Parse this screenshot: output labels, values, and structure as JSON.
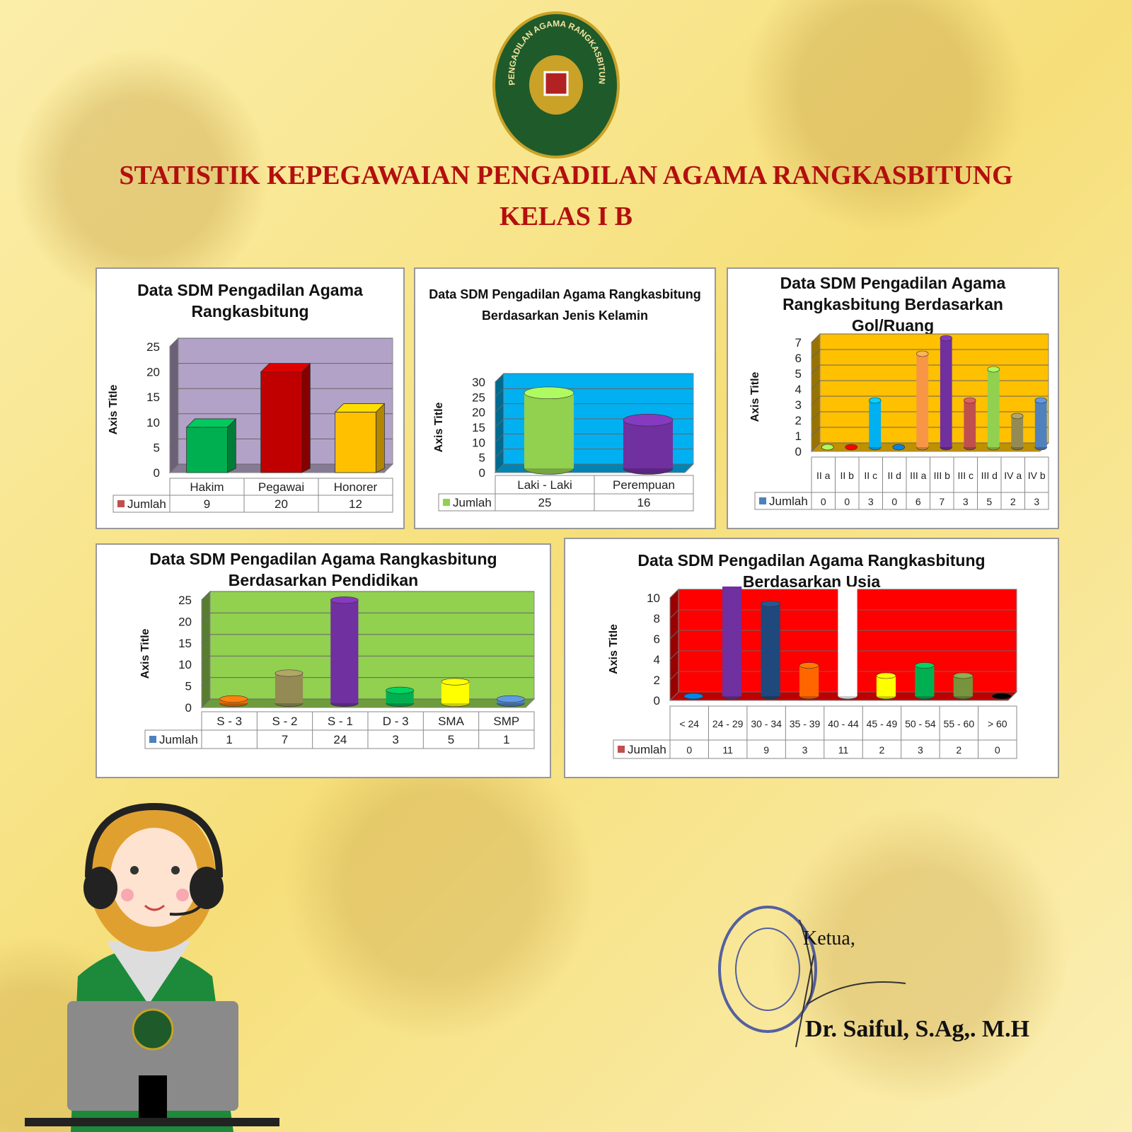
{
  "header": {
    "logo_text": "PENGADILAN AGAMA RANGKASBITUNG",
    "title": [
      "STATISTIK KEPEGAWAIAN PENGADILAN AGAMA RANGKASBITUNG",
      "KELAS I B"
    ]
  },
  "chart_data": [
    {
      "type": "bar",
      "bar_shape": "box",
      "title": [
        "Data SDM Pengadilan Agama",
        "Rangkasbitung"
      ],
      "y_axis_label": "Axis Title",
      "categories": [
        "Hakim",
        "Pegawai",
        "Honorer"
      ],
      "series": [
        {
          "name": "Jumlah",
          "color": "#c0504d",
          "colors": [
            "#00b050",
            "#c00000",
            "#ffc000"
          ],
          "values": [
            9,
            20,
            12
          ]
        }
      ],
      "ylim": [
        0,
        25
      ],
      "yticks": [
        0,
        5,
        10,
        15,
        20,
        25
      ],
      "grid": true,
      "plot_color": "#b3a2c7"
    },
    {
      "type": "bar",
      "bar_shape": "cylinder",
      "title": [
        "Data SDM Pengadilan Agama Rangkasbitung",
        "Berdasarkan Jenis Kelamin"
      ],
      "y_axis_label": "Axis Title",
      "categories": [
        "Laki - Laki",
        "Perempuan"
      ],
      "series": [
        {
          "name": "Jumlah",
          "color": "#92d050",
          "colors": [
            "#92d050",
            "#7030a0"
          ],
          "values": [
            25,
            16
          ]
        }
      ],
      "ylim": [
        0,
        30
      ],
      "yticks": [
        0,
        5,
        10,
        15,
        20,
        25,
        30
      ],
      "grid": true,
      "plot_color": "#00b0f0"
    },
    {
      "type": "bar",
      "bar_shape": "cylinder",
      "title": [
        "Data SDM Pengadilan Agama",
        "Rangkasbitung Berdasarkan",
        "Gol/Ruang"
      ],
      "y_axis_label": "Axis Title",
      "categories": [
        "II a",
        "II b",
        "II c",
        "II d",
        "III a",
        "III b",
        "III c",
        "III d",
        "IV a",
        "IV b"
      ],
      "series": [
        {
          "name": "Jumlah",
          "color": "#4f81bd",
          "colors": [
            "#92d050",
            "#ff0000",
            "#00b0f0",
            "#0070c0",
            "#f79646",
            "#7030a0",
            "#c0504d",
            "#92d050",
            "#948a54",
            "#4f81bd"
          ],
          "values": [
            0,
            0,
            3,
            0,
            6,
            7,
            3,
            5,
            2,
            3
          ]
        }
      ],
      "ylim": [
        0,
        7
      ],
      "yticks": [
        0,
        1,
        2,
        3,
        4,
        5,
        6,
        7
      ],
      "grid": true,
      "plot_color": "#ffc000"
    },
    {
      "type": "bar",
      "bar_shape": "cylinder",
      "title": [
        "Data SDM Pengadilan Agama Rangkasbitung",
        "Berdasarkan Pendidikan"
      ],
      "y_axis_label": "Axis Title",
      "categories": [
        "S - 3",
        "S - 2",
        "S - 1",
        "D - 3",
        "SMA",
        "SMP"
      ],
      "series": [
        {
          "name": "Jumlah",
          "color": "#4f81bd",
          "colors": [
            "#e46c0a",
            "#948a54",
            "#7030a0",
            "#00b050",
            "#ffff00",
            "#4f81bd"
          ],
          "values": [
            1,
            7,
            24,
            3,
            5,
            1
          ]
        }
      ],
      "ylim": [
        0,
        25
      ],
      "yticks": [
        0,
        5,
        10,
        15,
        20,
        25
      ],
      "grid": true,
      "plot_color": "#92d050"
    },
    {
      "type": "bar",
      "bar_shape": "cylinder",
      "title": [
        "Data SDM Pengadilan Agama Rangkasbitung",
        "Berdasarkan Usia"
      ],
      "y_axis_label": "Axis Title",
      "categories": [
        "< 24",
        "24 - 29",
        "30 - 34",
        "35 - 39",
        "40 - 44",
        "45 - 49",
        "50 - 54",
        "55 - 60",
        "> 60"
      ],
      "series": [
        {
          "name": "Jumlah",
          "color": "#c0504d",
          "colors": [
            "#0070c0",
            "#7030a0",
            "#1f497d",
            "#ff6600",
            "#ffffff",
            "#ffff00",
            "#00b050",
            "#77933c",
            "#000000"
          ],
          "values": [
            0,
            11,
            9,
            3,
            11,
            2,
            3,
            2,
            0
          ]
        }
      ],
      "ylim": [
        0,
        10
      ],
      "yticks": [
        0,
        2,
        4,
        6,
        8,
        10
      ],
      "grid": true,
      "plot_color": "#ff0000"
    }
  ],
  "signature": {
    "role": "Ketua,",
    "name": "Dr. Saiful, S.Ag,. M.H"
  }
}
